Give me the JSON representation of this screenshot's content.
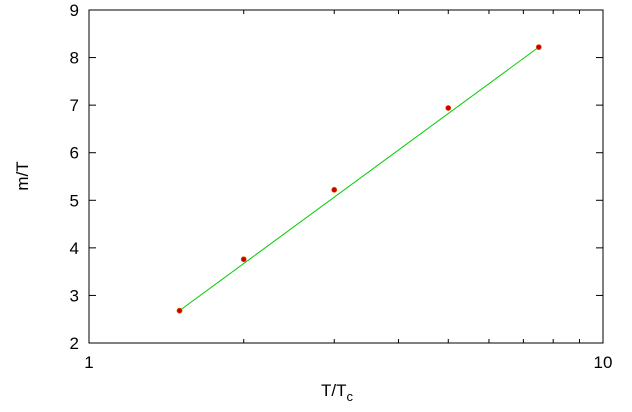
{
  "chart_data": {
    "type": "line",
    "xlabel": "T/T",
    "xlabel_subscript": "c",
    "ylabel": "m/T",
    "x_scale": "log",
    "xlim": [
      1,
      10
    ],
    "ylim": [
      2,
      9
    ],
    "x_ticks_labeled": [
      {
        "value": 1,
        "label": "1"
      },
      {
        "value": 10,
        "label": "10"
      }
    ],
    "x_ticks_minor": [
      2,
      3,
      4,
      5,
      6,
      7,
      8,
      9
    ],
    "y_ticks": [
      {
        "value": 2,
        "label": "2"
      },
      {
        "value": 3,
        "label": "3"
      },
      {
        "value": 4,
        "label": "4"
      },
      {
        "value": 5,
        "label": "5"
      },
      {
        "value": 6,
        "label": "6"
      },
      {
        "value": 7,
        "label": "7"
      },
      {
        "value": 8,
        "label": "8"
      },
      {
        "value": 9,
        "label": "9"
      }
    ],
    "series": [
      {
        "style": "points",
        "color": "#cc0000",
        "points": [
          {
            "x": 1.5,
            "y": 2.68
          },
          {
            "x": 2.0,
            "y": 3.76
          },
          {
            "x": 3.0,
            "y": 5.22
          },
          {
            "x": 5.0,
            "y": 6.94
          },
          {
            "x": 7.5,
            "y": 8.22
          }
        ]
      },
      {
        "style": "line",
        "color": "#00cc00",
        "points": [
          {
            "x": 1.5,
            "y": 2.68
          },
          {
            "x": 7.5,
            "y": 8.22
          }
        ]
      }
    ],
    "grid": false,
    "legend": "none"
  }
}
